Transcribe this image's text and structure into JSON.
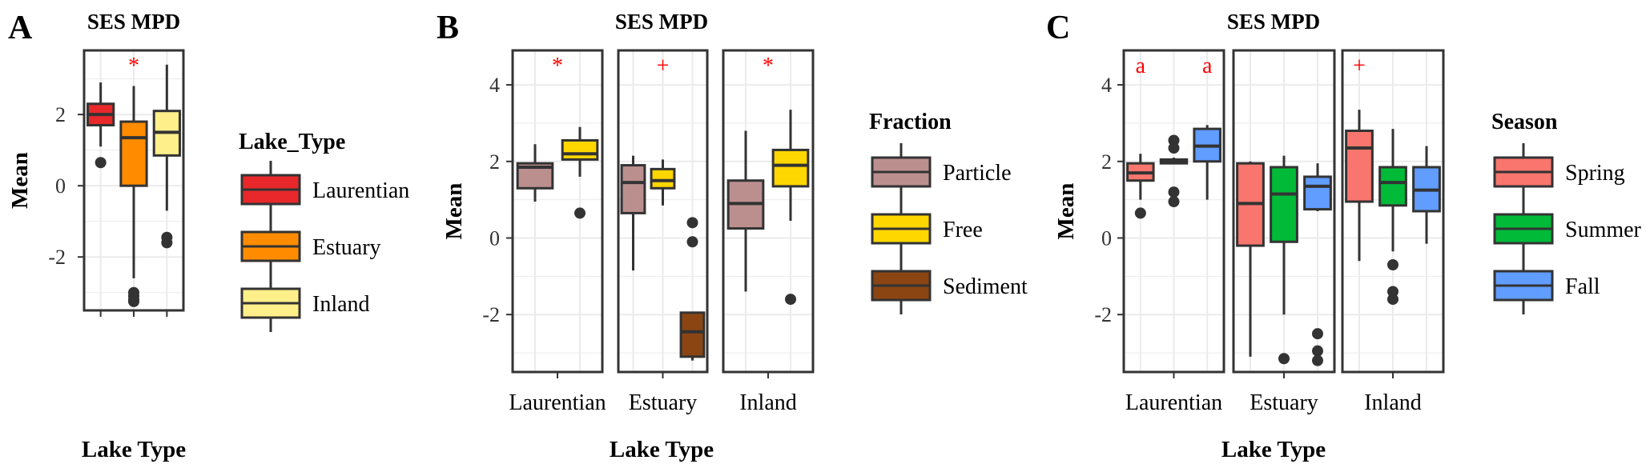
{
  "colors": {
    "Laurentian": "#e8282b",
    "Estuary": "#ff8c00",
    "Inland": "#ffef8a",
    "Particle": "#bc8f8f",
    "Free": "#ffd700",
    "Sediment": "#8b4513",
    "Spring": "#f8766d",
    "Summer": "#00ba38",
    "Fall": "#619cff"
  },
  "chart_data": [
    {
      "type": "box",
      "panel_label": "A",
      "title": "SES MPD",
      "xlabel": "Lake Type",
      "ylabel": "Mean",
      "ylim": [
        -3.5,
        3.8
      ],
      "yticks": [
        -2,
        0,
        2
      ],
      "ytick_labels": [
        "-2",
        "0",
        "2"
      ],
      "facets": [
        {
          "label": "",
          "xtick_labels": [],
          "boxes": [
            {
              "name": "Laurentian",
              "q1": 1.7,
              "median": 2.0,
              "q3": 2.3,
              "wlo": 1.1,
              "whi": 2.9,
              "outliers": [
                0.65
              ],
              "sig": ""
            },
            {
              "name": "Estuary",
              "q1": 0.0,
              "median": 1.35,
              "q3": 1.8,
              "wlo": -2.6,
              "whi": 2.8,
              "outliers": [
                -3.0,
                -3.1,
                -3.2,
                -3.25
              ],
              "sig": "*"
            },
            {
              "name": "Inland",
              "q1": 0.85,
              "median": 1.5,
              "q3": 2.1,
              "wlo": -0.7,
              "whi": 3.4,
              "outliers": [
                -1.45,
                -1.6
              ],
              "sig": ""
            }
          ]
        }
      ],
      "legend": {
        "title": "Lake_Type",
        "entries": [
          "Laurentian",
          "Estuary",
          "Inland"
        ]
      }
    },
    {
      "type": "box",
      "panel_label": "B",
      "title": "SES MPD",
      "xlabel": "Lake Type",
      "ylabel": "Mean",
      "ylim": [
        -3.5,
        4.9
      ],
      "yticks": [
        -2,
        0,
        2,
        4
      ],
      "ytick_labels": [
        "-2",
        "0",
        "2",
        "4"
      ],
      "facets": [
        {
          "label": "Laurentian",
          "boxes": [
            {
              "name": "Particle",
              "q1": 1.3,
              "median": 1.85,
              "q3": 1.95,
              "wlo": 0.95,
              "whi": 2.45,
              "outliers": [],
              "sig": ""
            },
            {
              "name": "Free",
              "q1": 2.05,
              "median": 2.2,
              "q3": 2.55,
              "wlo": 1.6,
              "whi": 2.9,
              "outliers": [
                0.65
              ],
              "sig": ""
            }
          ],
          "sig": "*"
        },
        {
          "label": "Estuary",
          "boxes": [
            {
              "name": "Particle",
              "q1": 0.65,
              "median": 1.45,
              "q3": 1.9,
              "wlo": -0.85,
              "whi": 2.15,
              "outliers": [],
              "sig": ""
            },
            {
              "name": "Free",
              "q1": 1.3,
              "median": 1.5,
              "q3": 1.8,
              "wlo": 0.85,
              "whi": 2.05,
              "outliers": [],
              "sig": ""
            },
            {
              "name": "Sediment",
              "q1": -3.1,
              "median": -2.45,
              "q3": -1.95,
              "wlo": -3.2,
              "whi": -1.95,
              "outliers": [
                0.4,
                -0.1
              ],
              "sig": ""
            }
          ],
          "sig": "+"
        },
        {
          "label": "Inland",
          "boxes": [
            {
              "name": "Particle",
              "q1": 0.25,
              "median": 0.9,
              "q3": 1.5,
              "wlo": -1.4,
              "whi": 2.8,
              "outliers": [],
              "sig": ""
            },
            {
              "name": "Free",
              "q1": 1.35,
              "median": 1.9,
              "q3": 2.3,
              "wlo": 0.45,
              "whi": 3.35,
              "outliers": [
                -1.6
              ],
              "sig": ""
            }
          ],
          "sig": "*"
        }
      ],
      "legend": {
        "title": "Fraction",
        "entries": [
          "Particle",
          "Free",
          "Sediment"
        ]
      }
    },
    {
      "type": "box",
      "panel_label": "C",
      "title": "SES MPD",
      "xlabel": "Lake Type",
      "ylabel": "Mean",
      "ylim": [
        -3.5,
        4.9
      ],
      "yticks": [
        -2,
        0,
        2,
        4
      ],
      "ytick_labels": [
        "-2",
        "0",
        "2",
        "4"
      ],
      "facets": [
        {
          "label": "Laurentian",
          "boxes": [
            {
              "name": "Spring",
              "q1": 1.5,
              "median": 1.7,
              "q3": 1.95,
              "wlo": 1.0,
              "whi": 2.2,
              "outliers": [
                0.65
              ],
              "sig": "a"
            },
            {
              "name": "Summer",
              "q1": 1.95,
              "median": 2.0,
              "q3": 2.05,
              "wlo": 1.95,
              "whi": 2.1,
              "outliers": [
                2.55,
                2.35,
                1.2,
                0.95
              ],
              "sig": ""
            },
            {
              "name": "Fall",
              "q1": 2.0,
              "median": 2.4,
              "q3": 2.85,
              "wlo": 1.0,
              "whi": 2.95,
              "outliers": [],
              "sig": "a"
            }
          ],
          "sig": ""
        },
        {
          "label": "Estuary",
          "boxes": [
            {
              "name": "Spring",
              "q1": -0.2,
              "median": 0.9,
              "q3": 1.95,
              "wlo": -3.1,
              "whi": 2.0,
              "outliers": [],
              "sig": ""
            },
            {
              "name": "Summer",
              "q1": -0.1,
              "median": 1.15,
              "q3": 1.85,
              "wlo": -2.0,
              "whi": 2.15,
              "outliers": [
                -3.15
              ],
              "sig": ""
            },
            {
              "name": "Fall",
              "q1": 0.75,
              "median": 1.35,
              "q3": 1.6,
              "wlo": 0.7,
              "whi": 1.95,
              "outliers": [
                -2.5,
                -2.95,
                -3.2
              ],
              "sig": ""
            }
          ],
          "sig": ""
        },
        {
          "label": "Inland",
          "boxes": [
            {
              "name": "Spring",
              "q1": 0.95,
              "median": 2.35,
              "q3": 2.8,
              "wlo": -0.6,
              "whi": 3.35,
              "outliers": [],
              "sig": "+"
            },
            {
              "name": "Summer",
              "q1": 0.85,
              "median": 1.45,
              "q3": 1.85,
              "wlo": -0.35,
              "whi": 2.85,
              "outliers": [
                -0.7,
                -1.4,
                -1.6
              ],
              "sig": ""
            },
            {
              "name": "Fall",
              "q1": 0.7,
              "median": 1.25,
              "q3": 1.85,
              "wlo": -0.15,
              "whi": 2.4,
              "outliers": [],
              "sig": ""
            }
          ],
          "sig": ""
        }
      ],
      "legend": {
        "title": "Season",
        "entries": [
          "Spring",
          "Summer",
          "Fall"
        ]
      }
    }
  ]
}
